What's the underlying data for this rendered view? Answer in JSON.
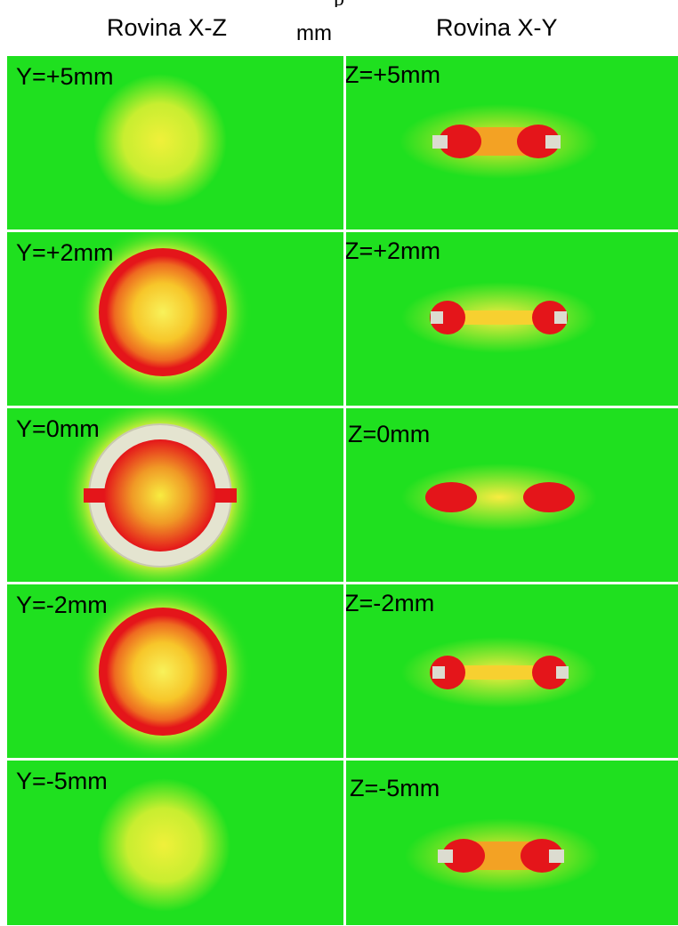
{
  "top_cut_text": "p",
  "header": {
    "left_title": "Rovina X-Z",
    "unit": "mm",
    "right_title": "Rovina X-Y"
  },
  "left_column": {
    "labels": [
      "Y=+5mm",
      "Y=+2mm",
      "Y=0mm",
      "Y=-2mm",
      "Y=-5mm"
    ]
  },
  "right_column": {
    "labels": [
      "Z=+5mm",
      "Z=+2mm",
      "Z=0mm",
      "Z=-2mm",
      "Z=-5mm"
    ]
  },
  "colors": {
    "background_field": "#1fe01f",
    "high": "#e4151a",
    "mid": "#f7e62a",
    "electrode": "#e4e4d0",
    "divider": "#ffffff"
  }
}
